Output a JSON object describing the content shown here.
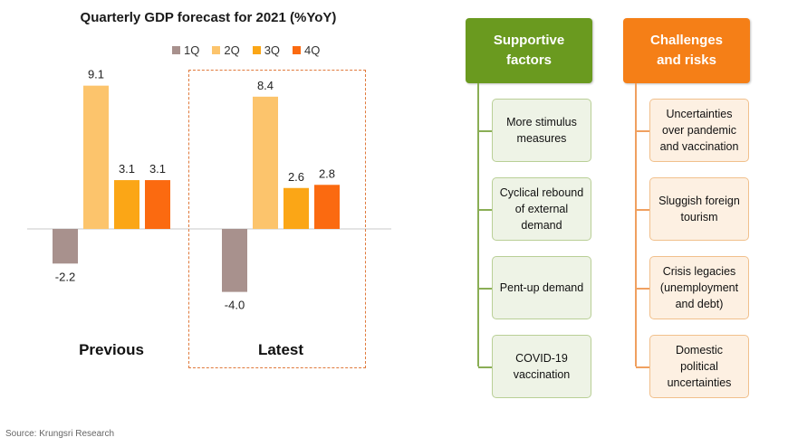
{
  "chart_data": {
    "type": "bar",
    "title": "Quarterly GDP forecast for 2021 (%YoY)",
    "categories": [
      "Previous",
      "Latest"
    ],
    "series": [
      {
        "name": "1Q",
        "values": [
          -2.2,
          -4.0
        ]
      },
      {
        "name": "2Q",
        "values": [
          9.1,
          8.4
        ]
      },
      {
        "name": "3Q",
        "values": [
          3.1,
          2.6
        ]
      },
      {
        "name": "4Q",
        "values": [
          3.1,
          2.8
        ]
      }
    ],
    "value_labels": [
      [
        "-2.2",
        "9.1",
        "3.1",
        "3.1"
      ],
      [
        "-4.0",
        "8.4",
        "2.6",
        "2.8"
      ]
    ],
    "colors": [
      "#a8918d",
      "#fcc46c",
      "#fba616",
      "#fb6a10"
    ],
    "legend_position": "top",
    "highlight": "dashed box around Latest",
    "grid": false
  },
  "source": "Source: Krungsri Research",
  "supportive": {
    "header_line1": "Supportive",
    "header_line2": "factors",
    "items": [
      [
        "More stimulus",
        "measures"
      ],
      [
        "Cyclical rebound",
        "of external",
        "demand"
      ],
      [
        "Pent-up demand"
      ],
      [
        "COVID-19",
        "vaccination"
      ]
    ],
    "color": "#6a9a1f"
  },
  "risks": {
    "header_line1": "Challenges",
    "header_line2": "and risks",
    "items": [
      [
        "Uncertainties",
        "over pandemic",
        "and vaccination"
      ],
      [
        "Sluggish foreign",
        "tourism"
      ],
      [
        "Crisis legacies",
        "(unemployment",
        "and debt)"
      ],
      [
        "Domestic",
        "political",
        "uncertainties"
      ]
    ],
    "color": "#f57f17"
  }
}
